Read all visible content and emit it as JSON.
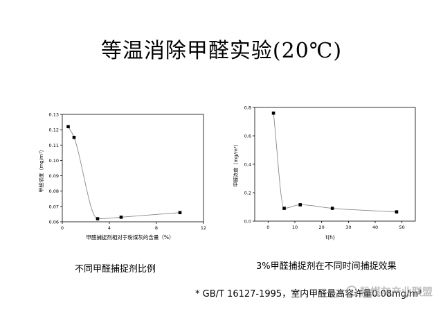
{
  "title": "等温消除甲醛实验(20℃)",
  "footnote": "* GB/T 16127-1995，室内甲醛最高容许量0.08mg/m³",
  "watermark": "粉煤灰产业联盟",
  "chart_data": [
    {
      "type": "scatter",
      "caption": "不同甲醛捕捉剂比例",
      "xlabel": "甲醛捕捉剂相对于粉煤灰的含量（%）",
      "ylabel": "甲醛浓度（mg/m³）",
      "xlim": [
        0,
        12
      ],
      "ylim": [
        0.06,
        0.13
      ],
      "xticks": [
        0,
        4,
        8,
        12
      ],
      "yticks": [
        0.06,
        0.07,
        0.08,
        0.09,
        0.1,
        0.11,
        0.12,
        0.13
      ],
      "x": [
        0.5,
        1,
        3,
        5,
        10
      ],
      "y": [
        0.122,
        0.115,
        0.062,
        0.063,
        0.066
      ],
      "fit_line": true,
      "grid": false
    },
    {
      "type": "scatter",
      "caption": "3%甲醛捕捉剂在不同时间捕捉效果",
      "xlabel": "t(h)",
      "ylabel": "甲醛浓度（mg/m³）",
      "xlim": [
        -5,
        55
      ],
      "ylim": [
        0,
        0.8
      ],
      "xticks": [
        0,
        10,
        20,
        30,
        40,
        50
      ],
      "yticks": [
        0.0,
        0.2,
        0.4,
        0.6,
        0.8
      ],
      "x": [
        2,
        6,
        12,
        24,
        48
      ],
      "y": [
        0.76,
        0.09,
        0.115,
        0.09,
        0.065
      ],
      "fit_line": true,
      "grid": false
    }
  ]
}
